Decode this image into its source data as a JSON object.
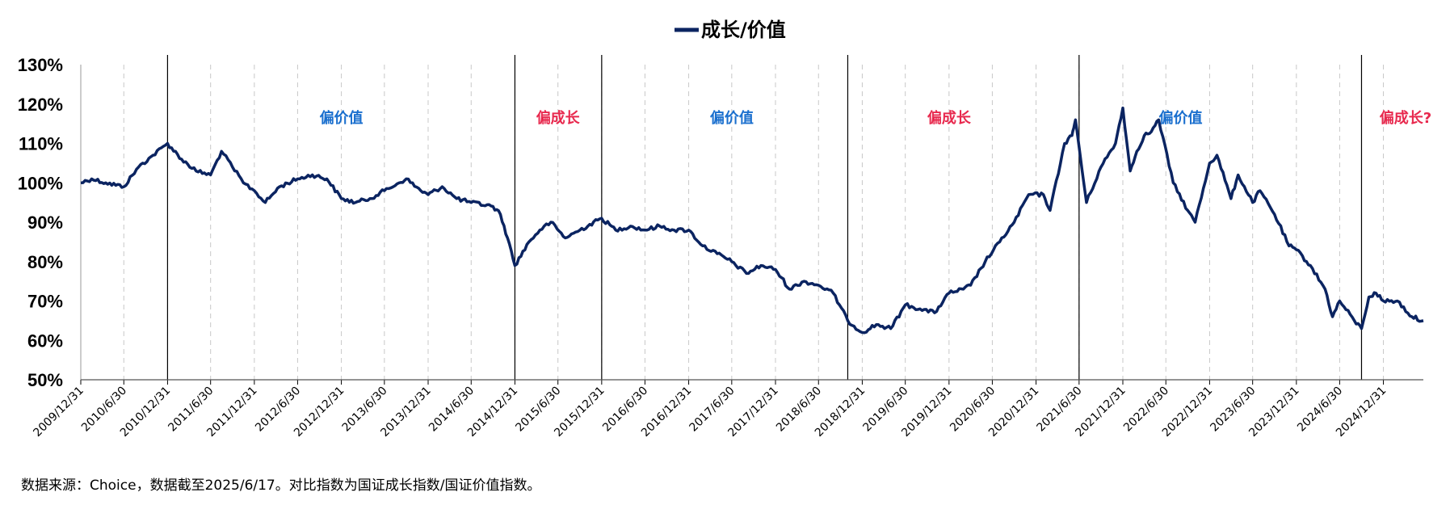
{
  "chart_data": {
    "type": "line",
    "series": [
      {
        "name": "成长/价值",
        "color": "#0b2461",
        "points": [
          [
            "2009/12/31",
            100
          ],
          [
            "2010/2/15",
            101
          ],
          [
            "2010/4/15",
            100
          ],
          [
            "2010/6/30",
            99
          ],
          [
            "2010/8/31",
            104
          ],
          [
            "2010/10/31",
            107
          ],
          [
            "2010/12/31",
            110
          ],
          [
            "2011/2/28",
            106
          ],
          [
            "2011/4/30",
            103
          ],
          [
            "2011/6/30",
            102
          ],
          [
            "2011/8/15",
            108
          ],
          [
            "2011/9/30",
            104
          ],
          [
            "2011/11/15",
            100
          ],
          [
            "2011/12/31",
            98
          ],
          [
            "2012/2/15",
            95
          ],
          [
            "2012/4/15",
            99
          ],
          [
            "2012/6/30",
            101
          ],
          [
            "2012/8/31",
            102
          ],
          [
            "2012/10/31",
            101
          ],
          [
            "2012/12/31",
            96
          ],
          [
            "2013/2/28",
            95
          ],
          [
            "2013/4/30",
            96
          ],
          [
            "2013/6/30",
            98
          ],
          [
            "2013/8/31",
            100
          ],
          [
            "2013/9/30",
            101
          ],
          [
            "2013/11/30",
            98
          ],
          [
            "2013/12/31",
            97
          ],
          [
            "2014/2/28",
            99
          ],
          [
            "2014/4/30",
            96
          ],
          [
            "2014/6/30",
            95
          ],
          [
            "2014/9/30",
            94
          ],
          [
            "2014/10/31",
            92
          ],
          [
            "2014/11/30",
            86
          ],
          [
            "2014/12/31",
            79
          ],
          [
            "2015/2/28",
            85
          ],
          [
            "2015/4/15",
            88
          ],
          [
            "2015/5/31",
            90
          ],
          [
            "2015/7/31",
            86
          ],
          [
            "2015/9/30",
            88
          ],
          [
            "2015/12/31",
            91
          ],
          [
            "2016/2/28",
            88
          ],
          [
            "2016/4/30",
            89
          ],
          [
            "2016/6/30",
            88
          ],
          [
            "2016/8/31",
            89
          ],
          [
            "2016/10/31",
            88
          ],
          [
            "2016/12/31",
            88
          ],
          [
            "2017/2/28",
            84
          ],
          [
            "2017/4/30",
            82
          ],
          [
            "2017/6/30",
            80
          ],
          [
            "2017/8/31",
            77
          ],
          [
            "2017/10/31",
            79
          ],
          [
            "2017/12/31",
            78
          ],
          [
            "2018/2/28",
            73
          ],
          [
            "2018/4/30",
            75
          ],
          [
            "2018/6/30",
            74
          ],
          [
            "2018/8/31",
            72
          ],
          [
            "2018/10/31",
            65
          ],
          [
            "2018/12/31",
            62
          ],
          [
            "2019/2/28",
            64
          ],
          [
            "2019/4/30",
            63
          ],
          [
            "2019/6/30",
            69
          ],
          [
            "2019/8/31",
            68
          ],
          [
            "2019/10/31",
            67
          ],
          [
            "2019/12/31",
            72
          ],
          [
            "2020/2/29",
            73
          ],
          [
            "2020/3/31",
            74
          ],
          [
            "2020/5/31",
            80
          ],
          [
            "2020/7/31",
            85
          ],
          [
            "2020/9/30",
            90
          ],
          [
            "2020/11/30",
            97
          ],
          [
            "2021/1/31",
            97
          ],
          [
            "2021/2/28",
            93
          ],
          [
            "2021/4/30",
            110
          ],
          [
            "2021/5/31",
            112
          ],
          [
            "2021/6/15",
            116
          ],
          [
            "2021/7/31",
            95
          ],
          [
            "2021/9/30",
            104
          ],
          [
            "2021/11/30",
            110
          ],
          [
            "2021/12/31",
            119
          ],
          [
            "2022/1/31",
            103
          ],
          [
            "2022/2/28",
            108
          ],
          [
            "2022/3/31",
            112
          ],
          [
            "2022/4/30",
            113
          ],
          [
            "2022/5/31",
            116
          ],
          [
            "2022/7/31",
            100
          ],
          [
            "2022/9/30",
            93
          ],
          [
            "2022/10/31",
            90
          ],
          [
            "2022/12/31",
            105
          ],
          [
            "2023/1/31",
            107
          ],
          [
            "2023/3/31",
            96
          ],
          [
            "2023/4/30",
            102
          ],
          [
            "2023/6/30",
            95
          ],
          [
            "2023/7/31",
            98
          ],
          [
            "2023/9/30",
            92
          ],
          [
            "2023/11/30",
            84
          ],
          [
            "2023/12/31",
            83
          ],
          [
            "2024/2/28",
            79
          ],
          [
            "2024/4/30",
            73
          ],
          [
            "2024/5/31",
            66
          ],
          [
            "2024/6/30",
            70
          ],
          [
            "2024/8/31",
            65
          ],
          [
            "2024/9/30",
            63
          ],
          [
            "2024/10/31",
            71
          ],
          [
            "2024/11/30",
            72
          ],
          [
            "2024/12/31",
            70
          ],
          [
            "2025/2/28",
            70
          ],
          [
            "2025/4/30",
            66
          ],
          [
            "2025/6/17",
            65
          ]
        ]
      }
    ],
    "y_ticks": [
      "50%",
      "60%",
      "70%",
      "80%",
      "90%",
      "100%",
      "110%",
      "120%",
      "130%"
    ],
    "ylim": [
      50,
      130
    ],
    "x_ticks": [
      "2009/12/31",
      "2010/6/30",
      "2010/12/31",
      "2011/6/30",
      "2011/12/31",
      "2012/6/30",
      "2012/12/31",
      "2013/6/30",
      "2013/12/31",
      "2014/6/30",
      "2014/12/31",
      "2015/6/30",
      "2015/12/31",
      "2016/6/30",
      "2016/12/31",
      "2017/6/30",
      "2017/12/31",
      "2018/6/30",
      "2018/12/31",
      "2019/6/30",
      "2019/12/31",
      "2020/6/30",
      "2020/12/31",
      "2021/6/30",
      "2021/12/31",
      "2022/6/30",
      "2022/12/31",
      "2023/6/30",
      "2023/12/31",
      "2024/6/30",
      "2024/12/31"
    ],
    "xlim": [
      "2009/12/31",
      "2025/6/17"
    ],
    "dividers": [
      "2010/12/31",
      "2014/12/31",
      "2015/12/31",
      "2018/10/31",
      "2021/6/30",
      "2024/9/30"
    ],
    "regimes": [
      {
        "label": "偏价值",
        "color": "#1a6fce",
        "date": "2012/12/31"
      },
      {
        "label": "偏成长",
        "color": "#e8294e",
        "date": "2015/6/30"
      },
      {
        "label": "偏价值",
        "color": "#1a6fce",
        "date": "2017/6/30"
      },
      {
        "label": "偏成长",
        "color": "#e8294e",
        "date": "2019/12/31"
      },
      {
        "label": "偏价值",
        "color": "#1a6fce",
        "date": "2022/8/31"
      },
      {
        "label": "偏成长?",
        "color": "#e8294e",
        "date": "2025/4/30"
      }
    ],
    "legend": "top-center",
    "grid": "vertical-dashed"
  },
  "footer": {
    "source": "数据来源：Choice，数据截至2025/6/17。对比指数为国证成长指数/国证价值指数。"
  }
}
